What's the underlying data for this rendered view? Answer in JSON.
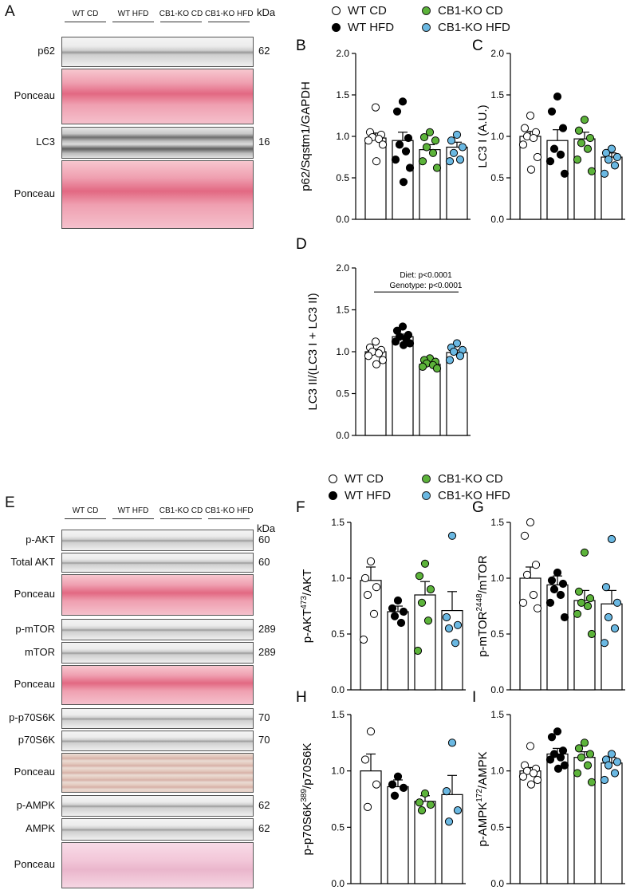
{
  "colors": {
    "wt_cd": "#ffffff",
    "wt_hfd": "#000000",
    "ko_cd": "#5cb33a",
    "ko_hfd": "#6ab8e2"
  },
  "top": {
    "panel_a": "A",
    "groups": [
      "WT CD",
      "WT HFD",
      "CB1-KO CD",
      "CB1-KO HFD"
    ],
    "kda": "kDa",
    "strips": [
      {
        "label": "p62",
        "kda": "62",
        "kind": "blot"
      },
      {
        "label": "Ponceau",
        "kda": "",
        "kind": "ponceau"
      },
      {
        "label": "LC3",
        "kda": "16",
        "kind": "blot2"
      },
      {
        "label": "Ponceau",
        "kda": "",
        "kind": "ponceau"
      }
    ]
  },
  "bottom": {
    "panel_e": "E",
    "groups": [
      "WT CD",
      "WT HFD",
      "CB1-KO CD",
      "CB1-KO HFD"
    ],
    "kda": "kDa",
    "strips": [
      {
        "label": "p-AKT",
        "kda": "60",
        "kind": "blot"
      },
      {
        "label": "Total AKT",
        "kda": "60",
        "kind": "blot"
      },
      {
        "label": "Ponceau",
        "kda": "",
        "kind": "ponceau"
      },
      {
        "label": "p-mTOR",
        "kda": "289",
        "kind": "blot"
      },
      {
        "label": "mTOR",
        "kda": "289",
        "kind": "blot"
      },
      {
        "label": "Ponceau",
        "kda": "",
        "kind": "ponceau"
      },
      {
        "label": "p-p70S6K",
        "kda": "70",
        "kind": "blot"
      },
      {
        "label": "p70S6K",
        "kda": "70",
        "kind": "blot"
      },
      {
        "label": "Ponceau",
        "kda": "",
        "kind": "ponceau2"
      },
      {
        "label": "p-AMPK",
        "kda": "62",
        "kind": "blot"
      },
      {
        "label": "AMPK",
        "kda": "62",
        "kind": "blot"
      },
      {
        "label": "Ponceau",
        "kda": "",
        "kind": "ponceau3"
      }
    ]
  },
  "legend_top": [
    "WT CD",
    "WT HFD",
    "CB1-KO CD",
    "CB1-KO HFD"
  ],
  "legend_bottom": [
    "WT CD",
    "WT HFD",
    "CB1-KO CD",
    "CB1-KO HFD"
  ],
  "chart_data": [
    {
      "id": "B",
      "type": "bar",
      "ylabel": "p62/Sqstm1/GAPDH",
      "ylim": [
        0,
        2.0
      ],
      "ticks": [
        "0.0",
        "0.5",
        "1.0",
        "1.5",
        "2.0"
      ],
      "categories": [
        "WT CD",
        "WT HFD",
        "CB1-KO CD",
        "CB1-KO HFD"
      ],
      "values": [
        0.98,
        0.95,
        0.84,
        0.87
      ],
      "errors": [
        0.06,
        0.1,
        0.06,
        0.06
      ],
      "points": [
        [
          1.35,
          1.05,
          1.02,
          0.99,
          0.97,
          0.95,
          0.9,
          0.7
        ],
        [
          1.42,
          1.3,
          0.98,
          0.9,
          0.82,
          0.72,
          0.62,
          0.45
        ],
        [
          1.05,
          0.99,
          0.95,
          0.87,
          0.8,
          0.7,
          0.62
        ],
        [
          1.02,
          0.95,
          0.87,
          0.8,
          0.72,
          0.7
        ]
      ],
      "annotations": []
    },
    {
      "id": "C",
      "type": "bar",
      "ylabel": "LC3 I (A.U.)",
      "ylim": [
        0,
        2.0
      ],
      "ticks": [
        "0.0",
        "0.5",
        "1.0",
        "1.5",
        "2.0"
      ],
      "categories": [
        "WT CD",
        "WT HFD",
        "CB1-KO CD",
        "CB1-KO HFD"
      ],
      "values": [
        1.0,
        0.95,
        0.97,
        0.75
      ],
      "errors": [
        0.06,
        0.13,
        0.08,
        0.05
      ],
      "points": [
        [
          1.25,
          1.1,
          1.05,
          1.0,
          0.98,
          0.9,
          0.75,
          0.6
        ],
        [
          1.48,
          1.3,
          1.1,
          0.85,
          0.78,
          0.7,
          0.55
        ],
        [
          1.2,
          1.07,
          0.98,
          0.92,
          0.85,
          0.72,
          0.58
        ],
        [
          0.85,
          0.8,
          0.75,
          0.72,
          0.65,
          0.55
        ]
      ],
      "annotations": []
    },
    {
      "id": "D",
      "type": "bar",
      "ylabel": "LC3 II/(LC3 I + LC3 II)",
      "ylim": [
        0,
        2.0
      ],
      "ticks": [
        "0.0",
        "0.5",
        "1.0",
        "1.5",
        "2.0"
      ],
      "categories": [
        "WT CD",
        "WT HFD",
        "CB1-KO CD",
        "CB1-KO HFD"
      ],
      "values": [
        1.0,
        1.18,
        0.85,
        0.99
      ],
      "errors": [
        0.03,
        0.03,
        0.02,
        0.03
      ],
      "points": [
        [
          1.12,
          1.05,
          1.02,
          1.0,
          0.98,
          0.95,
          0.9,
          0.85
        ],
        [
          1.3,
          1.25,
          1.2,
          1.18,
          1.16,
          1.12,
          1.1,
          1.08
        ],
        [
          0.92,
          0.9,
          0.88,
          0.86,
          0.84,
          0.82,
          0.8
        ],
        [
          1.1,
          1.05,
          1.02,
          1.0,
          0.95,
          0.9
        ]
      ],
      "annotations": [
        "Diet: p<0.0001",
        "Genotype: p<0.0001"
      ]
    },
    {
      "id": "F",
      "type": "bar",
      "ylabel": "p-AKT473/AKT",
      "ylim": [
        0,
        1.5
      ],
      "ticks": [
        "0.0",
        "0.5",
        "1.0",
        "1.5"
      ],
      "categories": [
        "WT CD",
        "WT HFD",
        "CB1-KO CD",
        "CB1-KO HFD"
      ],
      "values": [
        0.98,
        0.7,
        0.85,
        0.71
      ],
      "errors": [
        0.12,
        0.05,
        0.12,
        0.17
      ],
      "points": [
        [
          1.15,
          1.0,
          0.92,
          0.85,
          0.68,
          0.45
        ],
        [
          0.8,
          0.73,
          0.7,
          0.66,
          0.6
        ],
        [
          1.13,
          1.02,
          0.9,
          0.78,
          0.62,
          0.35
        ],
        [
          1.38,
          0.65,
          0.58,
          0.55,
          0.42
        ]
      ],
      "annotations": []
    },
    {
      "id": "G",
      "type": "bar",
      "ylabel": "p-mTOR2448/mTOR",
      "ylim": [
        0,
        1.5
      ],
      "ticks": [
        "0.0",
        "0.5",
        "1.0",
        "1.5"
      ],
      "categories": [
        "WT CD",
        "WT HFD",
        "CB1-KO CD",
        "CB1-KO HFD"
      ],
      "values": [
        1.0,
        0.94,
        0.8,
        0.77
      ],
      "errors": [
        0.1,
        0.08,
        0.09,
        0.12
      ],
      "points": [
        [
          1.5,
          1.38,
          1.12,
          1.03,
          0.85,
          0.78,
          0.73
        ],
        [
          1.05,
          0.98,
          0.95,
          0.9,
          0.85,
          0.78,
          0.65
        ],
        [
          1.23,
          0.88,
          0.82,
          0.78,
          0.75,
          0.68,
          0.5
        ],
        [
          1.35,
          0.92,
          0.78,
          0.65,
          0.55,
          0.42
        ]
      ],
      "annotations": []
    },
    {
      "id": "H",
      "type": "bar",
      "ylabel": "p-p70S6K389/p70S6K",
      "ylim": [
        0,
        1.5
      ],
      "ticks": [
        "0.0",
        "0.5",
        "1.0",
        "1.5"
      ],
      "categories": [
        "WT CD",
        "WT HFD",
        "CB1-KO CD",
        "CB1-KO HFD"
      ],
      "values": [
        1.0,
        0.86,
        0.73,
        0.79
      ],
      "errors": [
        0.15,
        0.06,
        0.05,
        0.17
      ],
      "points": [
        [
          1.35,
          1.1,
          0.88,
          0.68
        ],
        [
          0.95,
          0.88,
          0.85,
          0.78
        ],
        [
          0.8,
          0.72,
          0.7,
          0.65
        ],
        [
          1.25,
          0.82,
          0.65,
          0.55
        ]
      ],
      "annotations": []
    },
    {
      "id": "I",
      "type": "bar",
      "ylabel": "p-AMPK172/AMPK",
      "ylim": [
        0,
        1.5
      ],
      "ticks": [
        "0.0",
        "0.5",
        "1.0",
        "1.5"
      ],
      "categories": [
        "WT CD",
        "WT HFD",
        "CB1-KO CD",
        "CB1-KO HFD"
      ],
      "values": [
        1.0,
        1.15,
        1.12,
        1.07
      ],
      "errors": [
        0.03,
        0.05,
        0.05,
        0.05
      ],
      "points": [
        [
          1.22,
          1.05,
          1.02,
          1.0,
          0.98,
          0.95,
          0.92,
          0.88
        ],
        [
          1.35,
          1.3,
          1.18,
          1.15,
          1.12,
          1.1,
          1.05,
          1.02
        ],
        [
          1.25,
          1.2,
          1.15,
          1.12,
          1.05,
          0.98,
          0.9
        ],
        [
          1.15,
          1.1,
          1.08,
          1.05,
          0.98,
          0.92
        ]
      ],
      "annotations": []
    }
  ],
  "chart_titles": {
    "B": "B",
    "C": "C",
    "D": "D",
    "F": "F",
    "G": "G",
    "H": "H",
    "I": "I"
  },
  "ylabel_parts": {
    "F": [
      "p-AKT",
      "473",
      "/AKT"
    ],
    "G": [
      "p-mTOR",
      "2448",
      "/mTOR"
    ],
    "H": [
      "p-p70S6K",
      "389",
      "/p70S6K"
    ],
    "I": [
      "p-AMPK",
      "172",
      "/AMPK"
    ]
  }
}
